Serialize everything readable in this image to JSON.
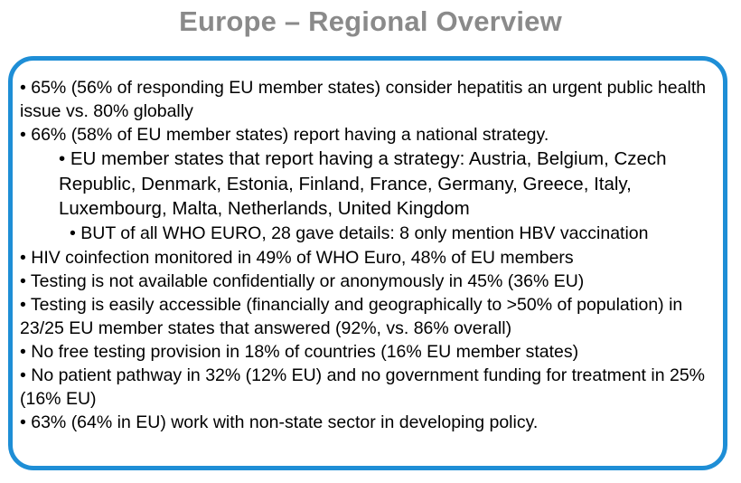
{
  "title": "Europe – Regional Overview",
  "bullets": [
    "• 65% (56% of responding EU member states) consider hepatitis an urgent public health issue vs. 80% globally",
    "• 66% (58% of EU member states) report having a national strategy.",
    "• EU member states that report having a strategy: Austria, Belgium, Czech Republic, Denmark, Estonia, Finland, France, Germany, Greece, Italy, Luxembourg, Malta, Netherlands, United Kingdom",
    "• BUT of all WHO EURO, 28 gave details: 8 only mention HBV vaccination",
    "• HIV coinfection monitored in 49% of WHO Euro, 48% of EU members",
    "• Testing is not available confidentially or anonymously in 45% (36% EU)",
    "• Testing is easily accessible (financially and geographically to >50% of population) in 23/25 EU member states that answered (92%, vs. 86% overall)",
    "• No free testing provision in 18% of countries (16% EU member states)",
    "• No patient pathway in 32% (12% EU) and no government funding for treatment in 25% (16% EU)",
    "• 63% (64% in EU) work with non-state sector in developing policy."
  ],
  "colors": {
    "title": "#8a8a8a",
    "border": "#1e8ed6"
  }
}
